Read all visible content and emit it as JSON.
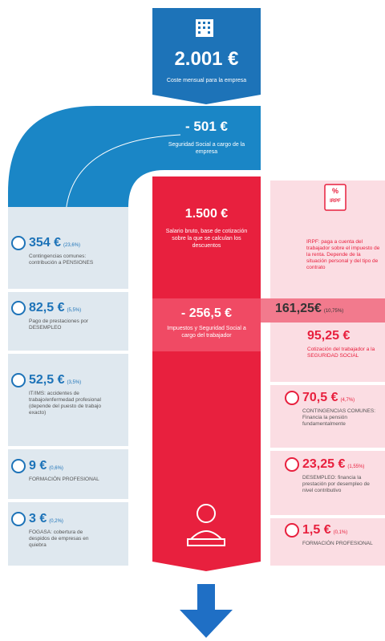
{
  "header": {
    "amount": "2.001 €",
    "caption": "Coste mensual para la empresa"
  },
  "employer_deduction": {
    "amount": "- 501 €",
    "caption": "Seguridad Social a cargo de la empresa"
  },
  "employer_items": [
    {
      "amount": "354 €",
      "share": "(23,6%)",
      "label": "Contingencias comunes: contribución a PENSIONES"
    },
    {
      "amount": "82,5 €",
      "share": "(5,5%)",
      "label": "Pago de prestaciones por DESEMPLEO"
    },
    {
      "amount": "52,5 €",
      "share": "(3,5%)",
      "label": "IT/IMS: accidentes de trabajo/enfermedad profesional (depende del puesto de trabajo exacto)"
    },
    {
      "amount": "9 €",
      "share": "(0,6%)",
      "label": "FORMACIÓN PROFESIONAL"
    },
    {
      "amount": "3 €",
      "share": "(0,2%)",
      "label": "FOGASA: cobertura de despidos de empresas en quiebra"
    }
  ],
  "gross": {
    "amount": "1.500 €",
    "caption": "Salario bruto, base de cotización sobre la que se calculan los descuentos"
  },
  "worker_deduction": {
    "amount": "- 256,5 €",
    "caption": "Impuestos y Seguridad Social a cargo del trabajador"
  },
  "irpf": {
    "icon_symbol": "%",
    "icon_text": "IRPF",
    "caption": "IRPF: paga a cuenta del trabajador sobre el impuesto de la renta. Depende de la situación personal y del tipo de contrato",
    "amount": "161,25€",
    "share": "(10,75%)"
  },
  "worker_ss": {
    "amount": "95,25 €",
    "caption": "Cotización del trabajador a la SEGURIDAD SOCIAL",
    "items": [
      {
        "amount": "70,5 €",
        "share": "(4,7%)",
        "label": "CONTINGENCIAS COMUNES: Financia la pensión fundamentalmente"
      },
      {
        "amount": "23,25 €",
        "share": "(1,55%)",
        "label": "DESEMPLEO: financia la prestación por desempleo de nivel contributivo"
      },
      {
        "amount": "1,5 €",
        "share": "(0,1%)",
        "label": "FORMACIÓN PROFESIONAL"
      }
    ]
  }
}
